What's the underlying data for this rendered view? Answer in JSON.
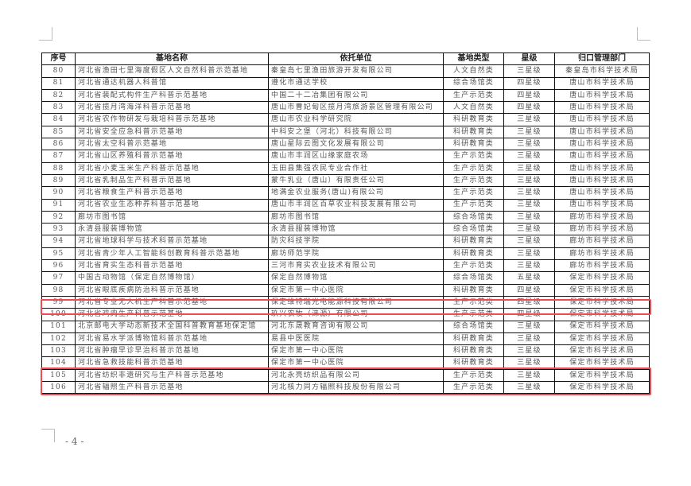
{
  "table": {
    "headers": [
      "序号",
      "基地名称",
      "依托单位",
      "基地类型",
      "星级",
      "归口管理部门"
    ],
    "rows": [
      [
        "80",
        "河北省渔田七里海度假区人文自然科普示范基地",
        "秦皇岛七里渔田旅游开发有限公司",
        "人文自然类",
        "三星级",
        "秦皇岛市科学技术局"
      ],
      [
        "81",
        "河北省通达机器人科普馆",
        "遵化市通达学校",
        "综合场馆类",
        "四星级",
        "唐山市科学技术局"
      ],
      [
        "82",
        "河北省装配式构件生产科普示范基地",
        "中国二十二冶集团有限公司",
        "生产示范类",
        "四星级",
        "唐山市科学技术局"
      ],
      [
        "83",
        "河北省揽月湾海洋科普示范基地",
        "唐山市曹妃甸区揽月湾旅游景区管理有限公司",
        "人文自然类",
        "四星级",
        "唐山市科学技术局"
      ],
      [
        "84",
        "河北省农作物研发与栽培科普示范基地",
        "唐山市农业科学研究院",
        "科研教育类",
        "三星级",
        "唐山市科学技术局"
      ],
      [
        "85",
        "河北省安全应急科普示范基地",
        "中科安之堡（河北）科技有限公司",
        "科研教育类",
        "三星级",
        "唐山市科学技术局"
      ],
      [
        "86",
        "河北省太空科普示范基地",
        "唐山星际云图文化发展有限公司",
        "科研教育类",
        "三星级",
        "唐山市科学技术局"
      ],
      [
        "87",
        "河北省山区养殖科普示范基地",
        "唐山市丰润区山缘家庭农场",
        "生产示范类",
        "三星级",
        "唐山市科学技术局"
      ],
      [
        "88",
        "河北省小麦玉米生产科普示范基地",
        "玉田县集强农民专业合作社",
        "生产示范类",
        "三星级",
        "唐山市科学技术局"
      ],
      [
        "89",
        "河北省乳制品生产科普示范基地",
        "蒙牛乳业（唐山）有限责任公司",
        "生产示范类",
        "三星级",
        "唐山市科学技术局"
      ],
      [
        "90",
        "河北省粮食生产科普示范基地",
        "地满金农业服务(唐山)有限公司",
        "生产示范类",
        "三星级",
        "唐山市科学技术局"
      ],
      [
        "91",
        "河北省农业生态种养科普示范基地",
        "唐山市丰润区百草农业科技发展有限公司",
        "生产示范类",
        "三星级",
        "唐山市科学技术局"
      ],
      [
        "92",
        "廊坊市图书馆",
        "廊坊市图书馆",
        "综合场馆类",
        "三星级",
        "廊坊市科学技术局"
      ],
      [
        "93",
        "永清县服装博物馆",
        "永清县服装博物馆",
        "综合场馆类",
        "三星级",
        "廊坊市科学技术局"
      ],
      [
        "94",
        "河北省地球科学与技术科普示范基地",
        "防灾科技学院",
        "科研教育类",
        "三星级",
        "廊坊市科学技术局"
      ],
      [
        "95",
        "河北省青少年人工智能科创教育科普示范基地",
        "廊坊师范学院",
        "科研教育类",
        "三星级",
        "廊坊市科学技术局"
      ],
      [
        "96",
        "河北省育实生态科普示范基地",
        "三河市育实农业技术有限公司",
        "生产示范类",
        "三星级",
        "廊坊市科学技术局"
      ],
      [
        "97",
        "中国古动物馆（保定自然博物馆）",
        "保定自然博物馆",
        "综合场馆类",
        "五星级",
        "保定市科学技术局"
      ],
      [
        "98",
        "河北省眼底疾病防治科普示范基地",
        "保定市第一中心医院",
        "科研教育类",
        "四星级",
        "保定市科学技术局"
      ],
      [
        "99",
        "河北省专业无人机生产科普示范基地",
        "保定维特瑞光电能源科技有限公司",
        "生产示范类",
        "四星级",
        "保定市科学技术局"
      ],
      [
        "100",
        "河北省鸡肉生产科普示范基地",
        "玖兴农牧（涞源）有限公司",
        "生产示范类",
        "四星级",
        "保定市科学技术局"
      ],
      [
        "101",
        "北京邮电大学动态新技术全国科普教育基地保定馆",
        "河北东晟教育咨询有限公司",
        "综合场馆类",
        "三星级",
        "保定市科学技术局"
      ],
      [
        "102",
        "河北省易水学派博物馆科普示范基地",
        "易县中医医院",
        "科研教育类",
        "三星级",
        "保定市科学技术局"
      ],
      [
        "103",
        "河北省肿瘤早诊早治科普示范基地",
        "保定市第一中心医院",
        "科研教育类",
        "三星级",
        "保定市科学技术局"
      ],
      [
        "104",
        "河北省急救技能科普示范基地",
        "保定市第一中心医院",
        "科研教育类",
        "三星级",
        "保定市科学技术局"
      ],
      [
        "105",
        "河北省纺织非遗研究与生产科普示范基地",
        "河北永亮纺织品有限公司",
        "生产示范类",
        "三星级",
        "保定市科学技术局"
      ],
      [
        "106",
        "河北省辐照生产科普示范基地",
        "河北核力同方辐照科技股份有限公司",
        "生产示范类",
        "三星级",
        "保定市科学技术局"
      ]
    ],
    "highlighted_rows": [
      "98",
      "103",
      "104"
    ],
    "highlight_color": "#f04a52"
  },
  "page_number": "- 4 -"
}
